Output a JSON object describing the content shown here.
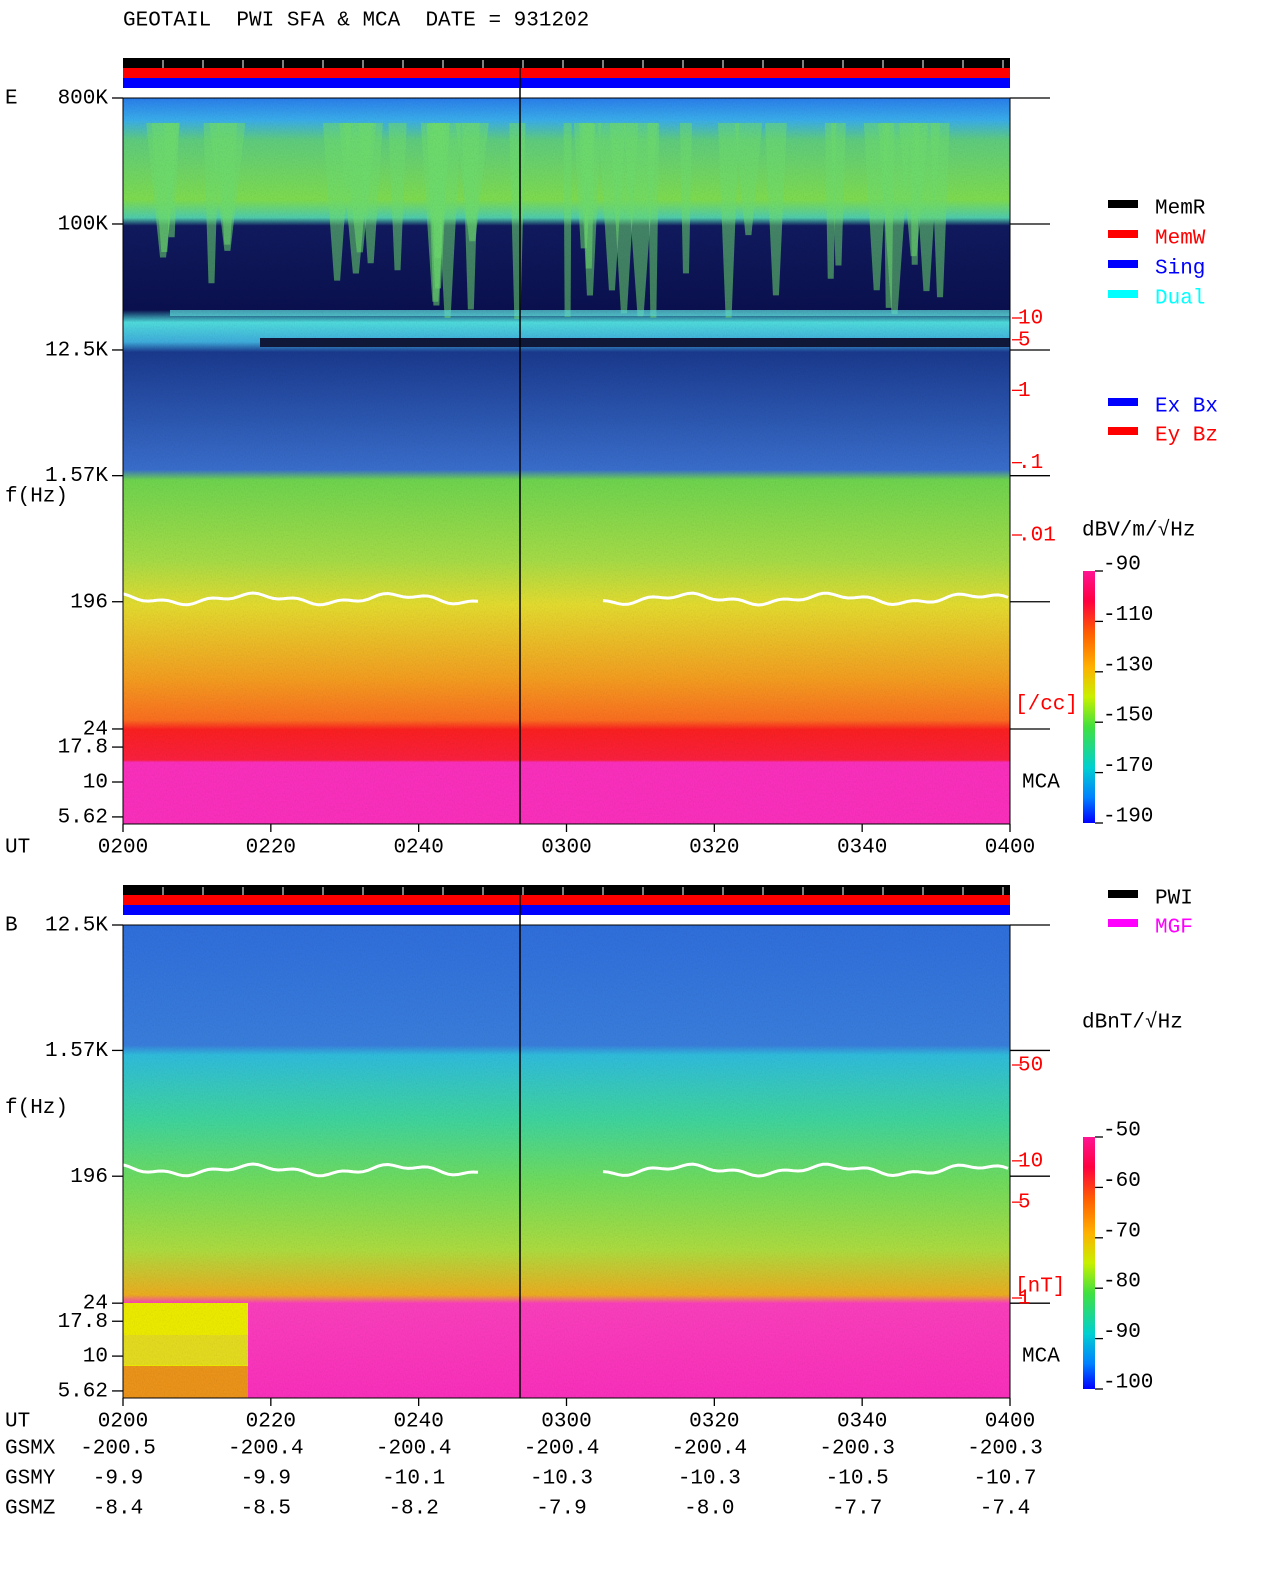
{
  "title": "GEOTAIL  PWI SFA & MCA  DATE = 931202",
  "chart_data": [
    {
      "type": "spectrogram",
      "panel_label": "E",
      "y_label": "f(Hz)",
      "x_label": "UT",
      "log_y": true,
      "ylim": [
        5,
        800000
      ],
      "yticks": [
        {
          "value": 800000,
          "label": "800K"
        },
        {
          "value": 100000,
          "label": "100K"
        },
        {
          "value": 12500,
          "label": "12.5K"
        },
        {
          "value": 1570,
          "label": "1.57K"
        },
        196,
        24,
        17.8,
        10,
        5.62
      ],
      "xlim": [
        120,
        240
      ],
      "xticks": [
        {
          "value": 120,
          "label": "0200"
        },
        {
          "value": 140,
          "label": "0220"
        },
        {
          "value": 160,
          "label": "0240"
        },
        {
          "value": 180,
          "label": "0300"
        },
        {
          "value": 200,
          "label": "0320"
        },
        {
          "value": 220,
          "label": "0340"
        },
        {
          "value": 240,
          "label": "0400"
        }
      ],
      "annotation": "MCA",
      "colorbar": {
        "label": "dBV/m/√Hz",
        "clim": [
          -190,
          -90
        ],
        "ticks": [
          -90,
          -110,
          -130,
          -150,
          -170,
          -190
        ]
      },
      "density_axis": {
        "label": "[/cc]",
        "color": "#ff0000",
        "log": true,
        "lim": [
          0.01,
          10
        ],
        "ticks": [
          10,
          5,
          1,
          {
            "value": 0.1,
            "label": ".1"
          },
          {
            "value": 0.01,
            "label": ".01"
          }
        ]
      },
      "legend": [
        {
          "name": "MemR",
          "color": "#000000"
        },
        {
          "name": "MemW",
          "color": "#ff0000"
        },
        {
          "name": "Sing",
          "color": "#0000ff"
        },
        {
          "name": "Dual",
          "color": "#00ffff"
        }
      ],
      "legend2": [
        {
          "name": "Ex Bx",
          "color": "#0000ff"
        },
        {
          "name": "Ey Bz",
          "color": "#ff0000"
        }
      ]
    },
    {
      "type": "spectrogram",
      "panel_label": "B",
      "y_label": "f(Hz)",
      "x_label": "UT",
      "log_y": true,
      "ylim": [
        5,
        12500
      ],
      "yticks": [
        {
          "value": 12500,
          "label": "12.5K"
        },
        {
          "value": 1570,
          "label": "1.57K"
        },
        196,
        24,
        17.8,
        10,
        5.62
      ],
      "xlim": [
        120,
        240
      ],
      "xticks": [
        {
          "value": 120,
          "label": "0200"
        },
        {
          "value": 140,
          "label": "0220"
        },
        {
          "value": 160,
          "label": "0240"
        },
        {
          "value": 180,
          "label": "0300"
        },
        {
          "value": 200,
          "label": "0320"
        },
        {
          "value": 220,
          "label": "0340"
        },
        {
          "value": 240,
          "label": "0400"
        }
      ],
      "annotation": "MCA",
      "colorbar": {
        "label": "dBnT/√Hz",
        "clim": [
          -100,
          -50
        ],
        "ticks": [
          -50,
          -60,
          -70,
          -80,
          -90,
          -100
        ]
      },
      "density_axis": {
        "label": "[nT]",
        "color": "#ff0000",
        "log": true,
        "lim": [
          1,
          50
        ],
        "ticks": [
          50,
          10,
          5,
          1
        ]
      },
      "legend": [
        {
          "name": "PWI",
          "color": "#000000"
        },
        {
          "name": "MGF",
          "color": "#ff00ff"
        }
      ]
    }
  ],
  "orbit": {
    "rows": [
      {
        "name": "GSMX",
        "values": [
          "-200.5",
          "-200.4",
          "-200.4",
          "-200.4",
          "-200.4",
          "-200.3",
          "-200.3"
        ]
      },
      {
        "name": "GSMY",
        "values": [
          "-9.9",
          "-9.9",
          "-10.1",
          "-10.3",
          "-10.3",
          "-10.5",
          "-10.7"
        ]
      },
      {
        "name": "GSMZ",
        "values": [
          "-8.4",
          "-8.5",
          "-8.2",
          "-7.9",
          "-8.0",
          "-7.7",
          "-7.4"
        ]
      }
    ]
  }
}
